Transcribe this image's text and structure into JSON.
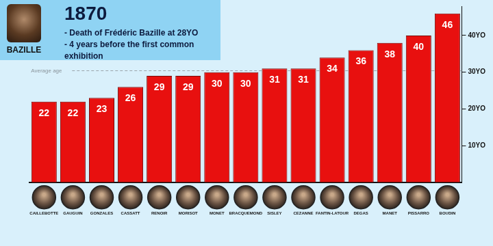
{
  "chart_data": {
    "type": "bar",
    "title": "1870",
    "subtitle": [
      "- Death of Frédéric Bazille at 28YO",
      "- 4 years before the first common exhibition"
    ],
    "caption": "BAZILLE",
    "categories": [
      "CAILLEBOTTE",
      "GAUGUIN",
      "GONZALES",
      "CASSATT",
      "RENOIR",
      "MORISOT",
      "MONET",
      "BRACQUEMOND",
      "SISLEY",
      "CEZANNE",
      "FANTIN-LATOUR",
      "DEGAS",
      "MANET",
      "PISSARRO",
      "BOUDIN"
    ],
    "values": [
      22,
      22,
      23,
      26,
      29,
      29,
      30,
      30,
      31,
      31,
      34,
      36,
      38,
      40,
      46
    ],
    "color": "#e8100f",
    "ylim": [
      0,
      48
    ],
    "yticks": [
      {
        "value": 10,
        "label": "10YO"
      },
      {
        "value": 20,
        "label": "20YO"
      },
      {
        "value": 30,
        "label": "30YO"
      },
      {
        "value": 40,
        "label": "40YO"
      }
    ],
    "reference_line": {
      "label": "Average age",
      "value": 30.4
    },
    "grid": false,
    "data_labels": true
  }
}
